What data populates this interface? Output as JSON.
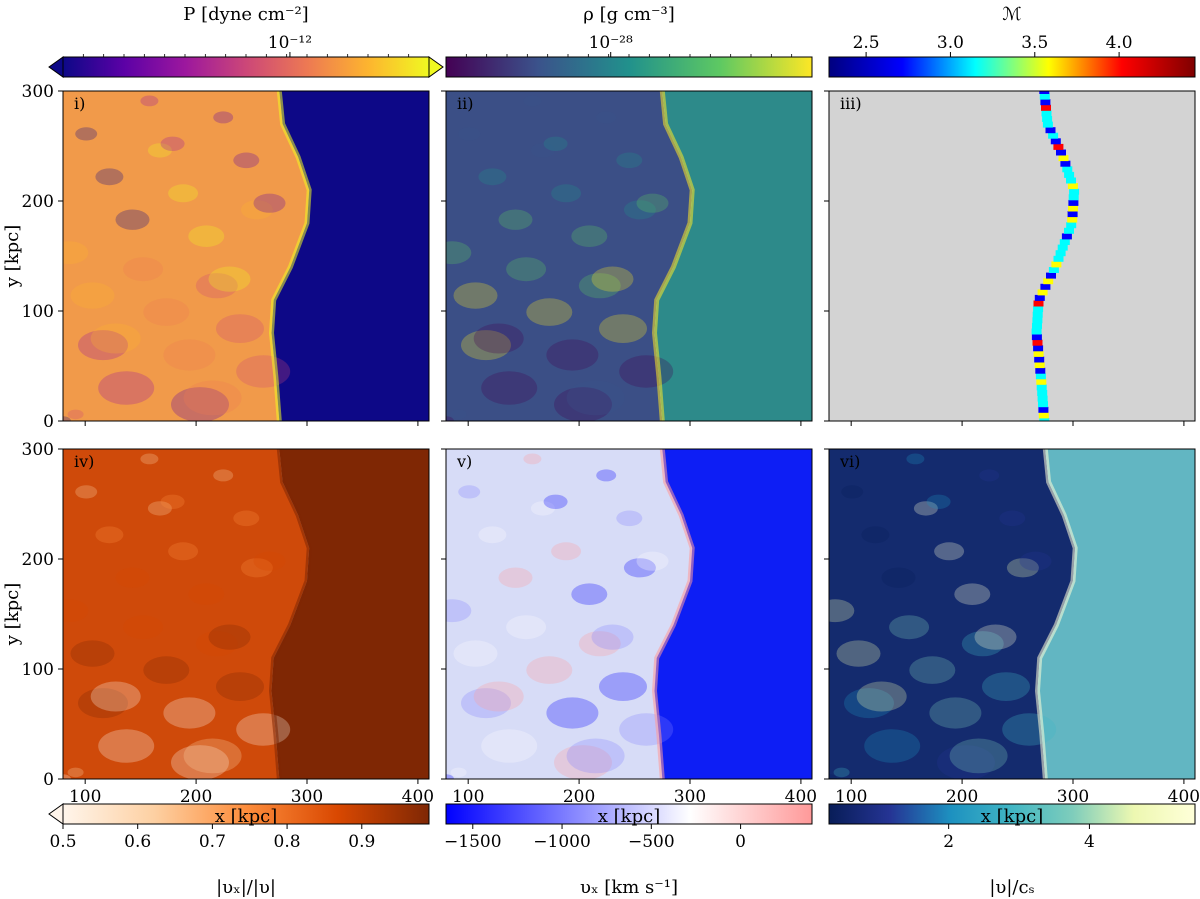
{
  "chart_data": [
    {
      "type": "heatmap",
      "panel_label": "i)",
      "quantity": "P [dyne cm⁻²]",
      "colorbar": {
        "position": "top",
        "colormap": "plasma",
        "scale": "log",
        "extend": "both",
        "ticks": [
          {
            "label": "10⁻¹²",
            "frac": 0.62
          }
        ],
        "colors": [
          "#0d0887",
          "#5c01a6",
          "#9c179e",
          "#cc4778",
          "#ed7953",
          "#fdb42f",
          "#f0f921"
        ]
      },
      "xlim": [
        80,
        410
      ],
      "ylim": [
        0,
        300
      ],
      "xticks": [
        100,
        200,
        300,
        400
      ],
      "yticks": [
        0,
        100,
        200,
        300
      ],
      "ylabel": "y [kpc]",
      "xlabel": "",
      "shock_front": [
        [
          0,
          275
        ],
        [
          40,
          272
        ],
        [
          80,
          268
        ],
        [
          110,
          270
        ],
        [
          140,
          285
        ],
        [
          180,
          300
        ],
        [
          210,
          302
        ],
        [
          240,
          292
        ],
        [
          270,
          278
        ],
        [
          300,
          275
        ]
      ],
      "region_colors": {
        "upstream": "#0d0887",
        "downstream": "#f19a4a"
      }
    },
    {
      "type": "heatmap",
      "panel_label": "ii)",
      "quantity": "ρ [g cm⁻³]",
      "colorbar": {
        "position": "top",
        "colormap": "viridis",
        "scale": "log",
        "extend": "neither",
        "ticks": [
          {
            "label": "10⁻²⁸",
            "frac": 0.45
          }
        ],
        "colors": [
          "#440154",
          "#3b528b",
          "#21918c",
          "#5ec962",
          "#fde725"
        ]
      },
      "xlim": [
        80,
        410
      ],
      "ylim": [
        0,
        300
      ],
      "xticks": [
        100,
        200,
        300,
        400
      ],
      "yticks": [
        0,
        100,
        200,
        300
      ],
      "xlabel": "",
      "ylabel": "",
      "region_colors": {
        "upstream": "#2d8a8a",
        "downstream": "#3b4f86"
      }
    },
    {
      "type": "heatmap",
      "panel_label": "iii)",
      "quantity": "ℳ",
      "colorbar": {
        "position": "top",
        "colormap": "jet",
        "scale": "linear",
        "extend": "neither",
        "vmin": 2.28,
        "vmax": 4.45,
        "ticks": [
          {
            "label": "2.5",
            "value": 2.5
          },
          {
            "label": "3.0",
            "value": 3.0
          },
          {
            "label": "3.5",
            "value": 3.5
          },
          {
            "label": "4.0",
            "value": 4.0
          }
        ],
        "colors": [
          "#00007f",
          "#0000ff",
          "#00ffff",
          "#ffff00",
          "#ff0000",
          "#7f0000"
        ]
      },
      "xlim": [
        80,
        410
      ],
      "ylim": [
        0,
        300
      ],
      "xticks": [
        100,
        200,
        300,
        400
      ],
      "yticks": [
        0,
        100,
        200,
        300
      ],
      "xlabel": "",
      "ylabel": "",
      "background": "#d3d3d3"
    },
    {
      "type": "heatmap",
      "panel_label": "iv)",
      "quantity": "|υₓ|/|υ|",
      "colorbar": {
        "position": "bottom",
        "colormap": "oranges",
        "scale": "linear",
        "extend": "min",
        "vmin": 0.5,
        "vmax": 0.99,
        "ticks": [
          {
            "label": "0.5",
            "value": 0.5
          },
          {
            "label": "0.6",
            "value": 0.6
          },
          {
            "label": "0.7",
            "value": 0.7
          },
          {
            "label": "0.8",
            "value": 0.8
          },
          {
            "label": "0.9",
            "value": 0.9
          }
        ],
        "colors": [
          "#fff5eb",
          "#fdd0a2",
          "#fd8d3c",
          "#d94801",
          "#7f2704"
        ]
      },
      "xlim": [
        80,
        410
      ],
      "ylim": [
        0,
        300
      ],
      "xticks": [
        100,
        200,
        300,
        400
      ],
      "yticks": [
        0,
        100,
        200,
        300
      ],
      "xlabel": "x [kpc]",
      "ylabel": "y [kpc]",
      "region_colors": {
        "upstream": "#7f2704",
        "downstream": "#cf4a0a"
      }
    },
    {
      "type": "heatmap",
      "panel_label": "v)",
      "quantity": "υₓ [km s⁻¹]",
      "colorbar": {
        "position": "bottom",
        "colormap": "bwr",
        "scale": "linear",
        "extend": "neither",
        "vmin": -1650,
        "vmax": 400,
        "ticks": [
          {
            "label": "−1500",
            "value": -1500
          },
          {
            "label": "−1000",
            "value": -1000
          },
          {
            "label": "−500",
            "value": -500
          },
          {
            "label": "0",
            "value": 0
          }
        ],
        "colors": [
          "#0000ff",
          "#8080ff",
          "#ffffff",
          "#ff9999"
        ]
      },
      "xlim": [
        80,
        410
      ],
      "ylim": [
        0,
        300
      ],
      "xticks": [
        100,
        200,
        300,
        400
      ],
      "yticks": [
        0,
        100,
        200,
        300
      ],
      "xlabel": "x [kpc]",
      "ylabel": "",
      "region_colors": {
        "upstream": "#0d1ef5",
        "downstream": "#d7dcf7"
      }
    },
    {
      "type": "heatmap",
      "panel_label": "vi)",
      "quantity": "|υ|/cₛ",
      "colorbar": {
        "position": "bottom",
        "colormap": "YlGnBu_r",
        "scale": "linear",
        "extend": "neither",
        "vmin": 0.3,
        "vmax": 5.5,
        "ticks": [
          {
            "label": "2",
            "value": 2
          },
          {
            "label": "4",
            "value": 4
          }
        ],
        "colors": [
          "#081d58",
          "#253494",
          "#1d91c0",
          "#41b6c4",
          "#7fcdbb",
          "#edf8b1",
          "#ffffd9"
        ]
      },
      "xlim": [
        80,
        410
      ],
      "ylim": [
        0,
        300
      ],
      "xticks": [
        100,
        200,
        300,
        400
      ],
      "yticks": [
        0,
        100,
        200,
        300
      ],
      "xlabel": "x [kpc]",
      "ylabel": "",
      "region_colors": {
        "upstream": "#62b6c2",
        "downstream": "#142b6e"
      }
    }
  ]
}
